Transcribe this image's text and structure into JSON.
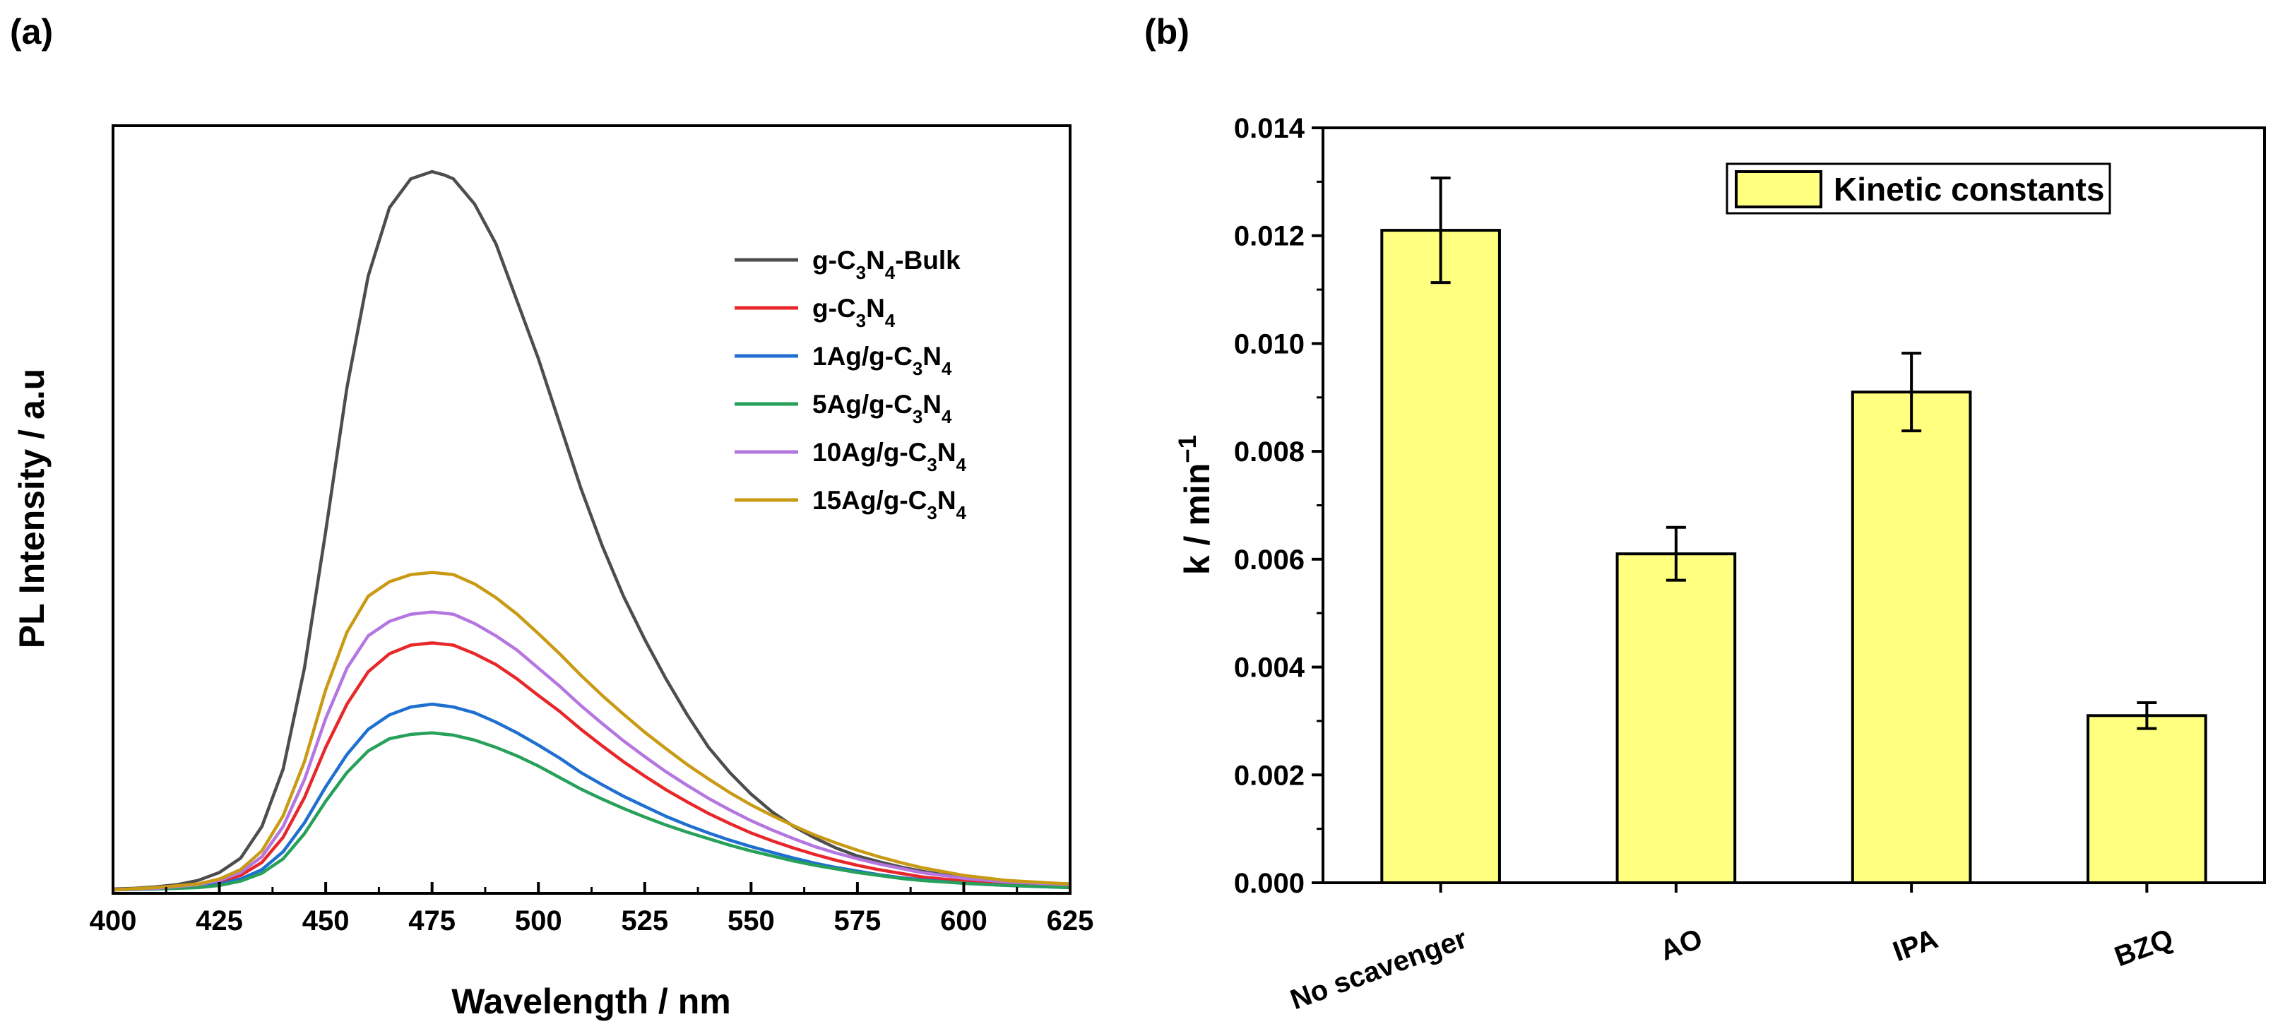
{
  "chart_data": [
    {
      "type": "line",
      "panel_label": "(a)",
      "xlabel": "Wavelength / nm",
      "ylabel": "PL Intensity / a.u",
      "xlim": [
        400,
        625
      ],
      "ylim": [
        0,
        1.0
      ],
      "xticks": [
        "400",
        "425",
        "450",
        "475",
        "500",
        "525",
        "550",
        "575",
        "600",
        "625"
      ],
      "grid": false,
      "legend_position": "top-right",
      "series": [
        {
          "name": "g-C3N4-Bulk",
          "label_parts": [
            [
              "g-C",
              ""
            ],
            [
              "3",
              "sub"
            ],
            [
              "N",
              ""
            ],
            [
              "4",
              "sub"
            ],
            [
              "-Bulk",
              ""
            ]
          ],
          "color": "#4d4d4d",
          "x": [
            400,
            405,
            410,
            415,
            420,
            425,
            430,
            435,
            440,
            445,
            450,
            455,
            460,
            465,
            470,
            475,
            478,
            480,
            485,
            490,
            495,
            500,
            505,
            510,
            515,
            520,
            525,
            530,
            535,
            540,
            545,
            550,
            555,
            560,
            565,
            570,
            575,
            580,
            585,
            590,
            595,
            600,
            605,
            610,
            615,
            620,
            625
          ],
          "y": [
            0.003,
            0.004,
            0.006,
            0.009,
            0.015,
            0.026,
            0.046,
            0.09,
            0.17,
            0.31,
            0.5,
            0.7,
            0.855,
            0.95,
            0.99,
            1.0,
            0.995,
            0.99,
            0.955,
            0.9,
            0.82,
            0.74,
            0.65,
            0.56,
            0.48,
            0.41,
            0.35,
            0.295,
            0.245,
            0.2,
            0.165,
            0.135,
            0.11,
            0.09,
            0.074,
            0.06,
            0.049,
            0.041,
            0.034,
            0.028,
            0.023,
            0.02,
            0.017,
            0.015,
            0.013,
            0.011,
            0.01
          ]
        },
        {
          "name": "g-C3N4",
          "label_parts": [
            [
              "g-C",
              ""
            ],
            [
              "3",
              "sub"
            ],
            [
              "N",
              ""
            ],
            [
              "4",
              "sub"
            ]
          ],
          "color": "#e8272a",
          "x": [
            400,
            410,
            420,
            425,
            430,
            435,
            440,
            445,
            450,
            455,
            460,
            465,
            470,
            475,
            480,
            485,
            490,
            495,
            500,
            505,
            510,
            515,
            520,
            525,
            530,
            535,
            540,
            545,
            550,
            555,
            560,
            565,
            570,
            575,
            580,
            585,
            590,
            600,
            610,
            625
          ],
          "y": [
            0.002,
            0.004,
            0.008,
            0.013,
            0.022,
            0.04,
            0.075,
            0.13,
            0.2,
            0.26,
            0.305,
            0.33,
            0.342,
            0.345,
            0.342,
            0.33,
            0.315,
            0.295,
            0.272,
            0.25,
            0.225,
            0.202,
            0.18,
            0.16,
            0.141,
            0.124,
            0.108,
            0.094,
            0.081,
            0.07,
            0.06,
            0.051,
            0.043,
            0.036,
            0.03,
            0.025,
            0.02,
            0.014,
            0.01,
            0.007
          ]
        },
        {
          "name": "1Ag/g-C3N4",
          "label_parts": [
            [
              "1Ag/g-C",
              ""
            ],
            [
              "3",
              "sub"
            ],
            [
              "N",
              ""
            ],
            [
              "4",
              "sub"
            ]
          ],
          "color": "#1f6fd1",
          "x": [
            400,
            410,
            420,
            425,
            430,
            435,
            440,
            445,
            450,
            455,
            460,
            465,
            470,
            475,
            480,
            485,
            490,
            495,
            500,
            505,
            510,
            515,
            520,
            525,
            530,
            535,
            540,
            545,
            550,
            555,
            560,
            565,
            570,
            575,
            580,
            585,
            590,
            600,
            610,
            625
          ],
          "y": [
            0.002,
            0.003,
            0.006,
            0.01,
            0.017,
            0.03,
            0.055,
            0.095,
            0.145,
            0.19,
            0.225,
            0.245,
            0.256,
            0.26,
            0.256,
            0.248,
            0.235,
            0.22,
            0.203,
            0.185,
            0.165,
            0.148,
            0.132,
            0.118,
            0.104,
            0.092,
            0.081,
            0.071,
            0.062,
            0.054,
            0.046,
            0.039,
            0.033,
            0.028,
            0.023,
            0.019,
            0.016,
            0.011,
            0.008,
            0.005
          ]
        },
        {
          "name": "5Ag/g-C3N4",
          "label_parts": [
            [
              "5Ag/g-C",
              ""
            ],
            [
              "3",
              "sub"
            ],
            [
              "N",
              ""
            ],
            [
              "4",
              "sub"
            ]
          ],
          "color": "#27a05a",
          "x": [
            400,
            410,
            420,
            425,
            430,
            435,
            440,
            445,
            450,
            455,
            460,
            465,
            470,
            475,
            480,
            485,
            490,
            495,
            500,
            505,
            510,
            515,
            520,
            525,
            530,
            535,
            540,
            545,
            550,
            555,
            560,
            565,
            570,
            575,
            580,
            585,
            590,
            600,
            610,
            625
          ],
          "y": [
            0.002,
            0.003,
            0.005,
            0.008,
            0.014,
            0.025,
            0.045,
            0.08,
            0.125,
            0.165,
            0.195,
            0.212,
            0.218,
            0.22,
            0.217,
            0.21,
            0.2,
            0.188,
            0.174,
            0.158,
            0.142,
            0.128,
            0.115,
            0.103,
            0.092,
            0.082,
            0.073,
            0.064,
            0.056,
            0.049,
            0.042,
            0.036,
            0.031,
            0.026,
            0.022,
            0.018,
            0.015,
            0.011,
            0.008,
            0.005
          ]
        },
        {
          "name": "10Ag/g-C3N4",
          "label_parts": [
            [
              "10Ag/g-C",
              ""
            ],
            [
              "3",
              "sub"
            ],
            [
              "N",
              ""
            ],
            [
              "4",
              "sub"
            ]
          ],
          "color": "#b476e0",
          "x": [
            400,
            410,
            420,
            425,
            430,
            435,
            440,
            445,
            450,
            455,
            460,
            465,
            470,
            475,
            480,
            485,
            490,
            495,
            500,
            505,
            510,
            515,
            520,
            525,
            530,
            535,
            540,
            545,
            550,
            555,
            560,
            565,
            570,
            575,
            580,
            585,
            590,
            600,
            610,
            625
          ],
          "y": [
            0.002,
            0.004,
            0.009,
            0.015,
            0.026,
            0.048,
            0.09,
            0.155,
            0.24,
            0.31,
            0.355,
            0.375,
            0.385,
            0.388,
            0.385,
            0.372,
            0.355,
            0.335,
            0.31,
            0.285,
            0.258,
            0.233,
            0.209,
            0.187,
            0.166,
            0.147,
            0.129,
            0.113,
            0.098,
            0.085,
            0.073,
            0.062,
            0.053,
            0.045,
            0.038,
            0.032,
            0.026,
            0.018,
            0.013,
            0.009
          ]
        },
        {
          "name": "15Ag/g-C3N4",
          "label_parts": [
            [
              "15Ag/g-C",
              ""
            ],
            [
              "3",
              "sub"
            ],
            [
              "N",
              ""
            ],
            [
              "4",
              "sub"
            ]
          ],
          "color": "#c99a14",
          "x": [
            400,
            410,
            420,
            425,
            430,
            435,
            440,
            445,
            450,
            455,
            460,
            465,
            470,
            475,
            480,
            485,
            490,
            495,
            500,
            505,
            510,
            515,
            520,
            525,
            530,
            535,
            540,
            545,
            550,
            555,
            560,
            565,
            570,
            575,
            580,
            585,
            590,
            600,
            610,
            625
          ],
          "y": [
            0.002,
            0.005,
            0.01,
            0.017,
            0.03,
            0.056,
            0.105,
            0.18,
            0.28,
            0.36,
            0.41,
            0.43,
            0.44,
            0.443,
            0.44,
            0.427,
            0.408,
            0.385,
            0.358,
            0.33,
            0.3,
            0.272,
            0.246,
            0.221,
            0.198,
            0.176,
            0.156,
            0.137,
            0.12,
            0.105,
            0.091,
            0.078,
            0.067,
            0.057,
            0.048,
            0.04,
            0.033,
            0.022,
            0.015,
            0.01
          ]
        }
      ]
    },
    {
      "type": "bar",
      "panel_label": "(b)",
      "categories": [
        "No scavenger",
        "AO",
        "IPA",
        "BZQ"
      ],
      "values": [
        0.0121,
        0.0061,
        0.0091,
        0.0031
      ],
      "errors": [
        0.00097,
        0.00049,
        0.00072,
        0.00024
      ],
      "ylim": [
        0,
        0.014
      ],
      "yticks": [
        "0.000",
        "0.002",
        "0.004",
        "0.006",
        "0.008",
        "0.010",
        "0.012",
        "0.014"
      ],
      "xlabel": "",
      "ylabel_parts": [
        [
          "k / min",
          ""
        ],
        [
          "−1",
          "sup"
        ]
      ],
      "legend": "Kinetic constants",
      "legend_position": "top-right",
      "bar_color": "#ffff80",
      "grid": false
    }
  ]
}
